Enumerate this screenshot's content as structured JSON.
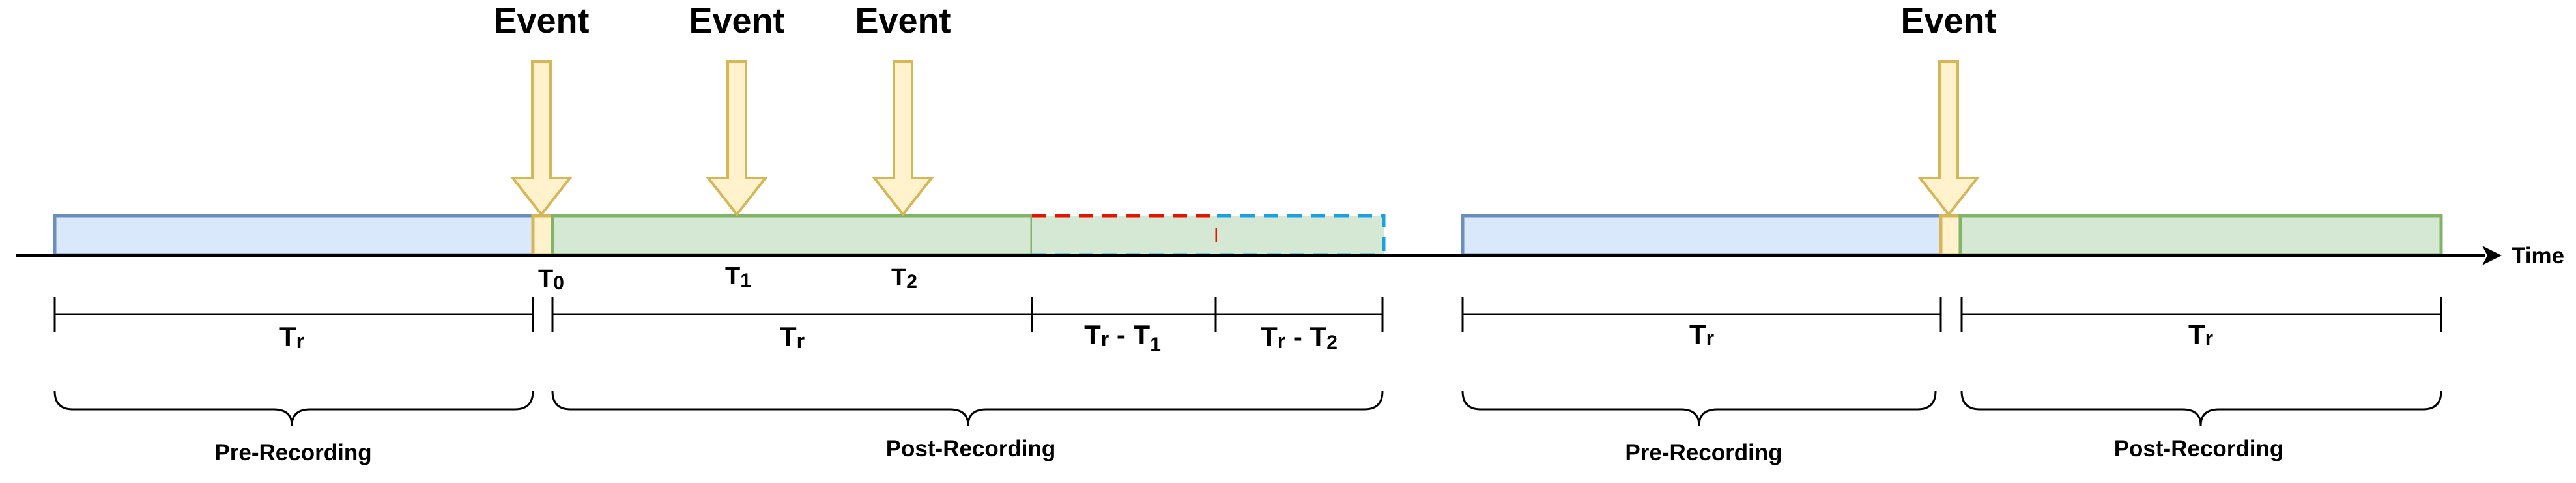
{
  "events": [
    {
      "id": "event-1",
      "label": "Event"
    },
    {
      "id": "event-2",
      "label": "Event"
    },
    {
      "id": "event-3",
      "label": "Event"
    },
    {
      "id": "event-4",
      "label": "Event"
    }
  ],
  "axis": {
    "label": "Time"
  },
  "time_markers": {
    "t0": {
      "base": "T",
      "sub": "0"
    },
    "t1": {
      "base": "T",
      "sub": "1"
    },
    "t2": {
      "base": "T",
      "sub": "2"
    }
  },
  "durations": {
    "tr_a": {
      "base": "T",
      "sub": "r",
      "suffix": ""
    },
    "tr_b": {
      "base": "T",
      "sub": "r",
      "suffix": ""
    },
    "tr_minus_t1": {
      "base": "T",
      "sub": "r",
      "mid": " - T",
      "sub2": "1"
    },
    "tr_minus_t2": {
      "base": "T",
      "sub": "r",
      "mid": " - T",
      "sub2": "2"
    },
    "tr_c": {
      "base": "T",
      "sub": "r",
      "suffix": ""
    },
    "tr_d": {
      "base": "T",
      "sub": "r",
      "suffix": ""
    }
  },
  "phases": {
    "pre_1": "Pre-Recording",
    "post_1": "Post-Recording",
    "pre_2": "Pre-Recording",
    "post_2": "Post-Recording"
  },
  "colors": {
    "pre_fill": "#dae8fc",
    "pre_stroke": "#6c8ebf",
    "post_fill": "#d5e8d4",
    "post_stroke": "#82b366",
    "event_fill": "#fff2cc",
    "event_stroke": "#d6b656",
    "extension_red": "#e51400",
    "extension_blue": "#1ba1e2"
  }
}
